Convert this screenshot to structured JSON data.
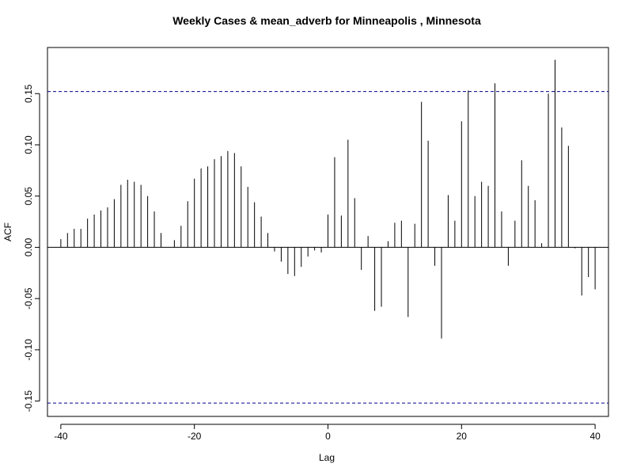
{
  "chart_data": {
    "type": "bar",
    "title": "Weekly Cases & mean_adverb for Minneapolis , Minnesota",
    "xlabel": "Lag",
    "ylabel": "ACF",
    "xlim": [
      -42,
      42
    ],
    "ylim": [
      -0.165,
      0.195
    ],
    "x_ticks": [
      -40,
      -20,
      0,
      20,
      40
    ],
    "x_tick_labels": [
      "-40",
      "-20",
      "0",
      "20",
      "40"
    ],
    "y_ticks": [
      -0.15,
      -0.1,
      -0.05,
      0.0,
      0.05,
      0.1,
      0.15
    ],
    "y_tick_labels": [
      "-0.15",
      "-0.10",
      "-0.05",
      "0.00",
      "0.05",
      "0.10",
      "0.15"
    ],
    "confidence_bound": 0.152,
    "grid": false,
    "colors": {
      "bars": "#000000",
      "bounds": "#00008b",
      "zero_line": "#000000"
    },
    "x": [
      -40,
      -39,
      -38,
      -37,
      -36,
      -35,
      -34,
      -33,
      -32,
      -31,
      -30,
      -29,
      -28,
      -27,
      -26,
      -25,
      -24,
      -23,
      -22,
      -21,
      -20,
      -19,
      -18,
      -17,
      -16,
      -15,
      -14,
      -13,
      -12,
      -11,
      -10,
      -9,
      -8,
      -7,
      -6,
      -5,
      -4,
      -3,
      -2,
      -1,
      0,
      1,
      2,
      3,
      4,
      5,
      6,
      7,
      8,
      9,
      10,
      11,
      12,
      13,
      14,
      15,
      16,
      17,
      18,
      19,
      20,
      21,
      22,
      23,
      24,
      25,
      26,
      27,
      28,
      29,
      30,
      31,
      32,
      33,
      34,
      35,
      36,
      37,
      38,
      39,
      40
    ],
    "values": [
      0.008,
      0.014,
      0.018,
      0.018,
      0.028,
      0.032,
      0.036,
      0.039,
      0.047,
      0.061,
      0.066,
      0.064,
      0.061,
      0.05,
      0.035,
      0.014,
      0.0,
      0.007,
      0.021,
      0.045,
      0.067,
      0.077,
      0.079,
      0.086,
      0.089,
      0.094,
      0.092,
      0.079,
      0.059,
      0.044,
      0.03,
      0.014,
      -0.004,
      -0.014,
      -0.026,
      -0.028,
      -0.019,
      -0.009,
      -0.003,
      -0.005,
      0.032,
      0.088,
      0.031,
      0.105,
      0.048,
      -0.022,
      0.011,
      -0.062,
      -0.058,
      0.006,
      0.024,
      0.026,
      -0.068,
      0.023,
      0.142,
      0.104,
      -0.018,
      -0.089,
      0.051,
      0.026,
      0.123,
      0.153,
      0.05,
      0.064,
      0.06,
      0.16,
      0.035,
      -0.018,
      0.026,
      0.085,
      0.06,
      0.046,
      0.004,
      0.15,
      0.183,
      0.117,
      0.099,
      -0.001,
      -0.047,
      -0.029,
      -0.041
    ]
  }
}
